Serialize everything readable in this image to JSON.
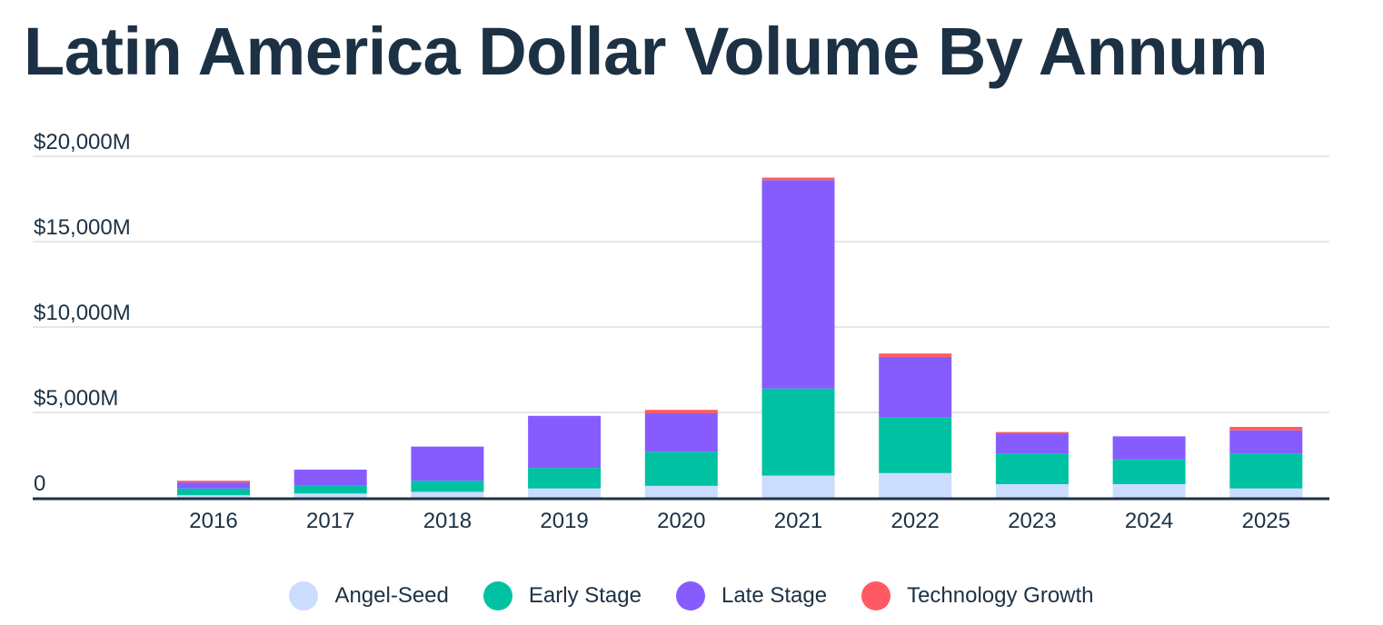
{
  "chart_data": {
    "type": "bar",
    "stacked": true,
    "title": "Latin America Dollar Volume By Annum",
    "categories": [
      "2016",
      "2017",
      "2018",
      "2019",
      "2020",
      "2021",
      "2022",
      "2023",
      "2024",
      "2025"
    ],
    "series": [
      {
        "name": "Angel-Seed",
        "color": "#cbdcff",
        "values": [
          150,
          250,
          350,
          550,
          700,
          1300,
          1450,
          800,
          800,
          550
        ]
      },
      {
        "name": "Early Stage",
        "color": "#00c2a3",
        "values": [
          400,
          450,
          650,
          1200,
          2000,
          5100,
          3250,
          1800,
          1450,
          2050
        ]
      },
      {
        "name": "Late Stage",
        "color": "#875cff",
        "values": [
          350,
          950,
          2000,
          3050,
          2250,
          12200,
          3550,
          1150,
          1350,
          1350
        ]
      },
      {
        "name": "Technology Growth",
        "color": "#ff5a63",
        "values": [
          100,
          0,
          0,
          0,
          200,
          150,
          200,
          100,
          0,
          200
        ]
      }
    ],
    "ylim": [
      0,
      20000
    ],
    "yticks": [
      0,
      5000,
      10000,
      15000,
      20000
    ],
    "ytick_labels": [
      "0",
      "$5,000M",
      "$10,000M",
      "$15,000M",
      "$20,000M"
    ],
    "xlabel": "",
    "ylabel": "",
    "grid": true,
    "legend_position": "bottom"
  }
}
